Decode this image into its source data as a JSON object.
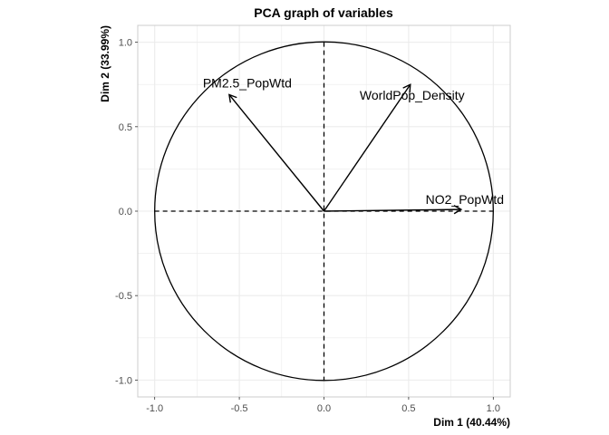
{
  "chart_data": {
    "type": "scatter",
    "subtype": "pca-variable-correlation-circle",
    "title": "PCA graph of variables",
    "xlabel": "Dim 1 (40.44%)",
    "ylabel": "Dim 2 (33.99%)",
    "xlim": [
      -1.1,
      1.1
    ],
    "ylim": [
      -1.1,
      1.1
    ],
    "x_ticks": [
      -1.0,
      -0.5,
      0.0,
      0.5,
      1.0
    ],
    "y_ticks": [
      -1.0,
      -0.5,
      0.0,
      0.5,
      1.0
    ],
    "x_tick_labels": [
      "-1.0",
      "-0.5",
      "0.0",
      "0.5",
      "1.0"
    ],
    "y_tick_labels": [
      "-1.0",
      "-0.5",
      "0.0",
      "0.5",
      "1.0"
    ],
    "grid": true,
    "unit_circle": true,
    "reference_lines": "dashed at x=0 and y=0",
    "variables": [
      {
        "name": "PM2.5_PopWtd",
        "x": -0.56,
        "y": 0.69
      },
      {
        "name": "WorldPop_Density",
        "x": 0.51,
        "y": 0.75
      },
      {
        "name": "NO2_PopWtd",
        "x": 0.81,
        "y": 0.01
      }
    ],
    "arrow_color": "#000000",
    "grid_color": "#ebebeb",
    "panel_border_color": "#cccccc"
  }
}
